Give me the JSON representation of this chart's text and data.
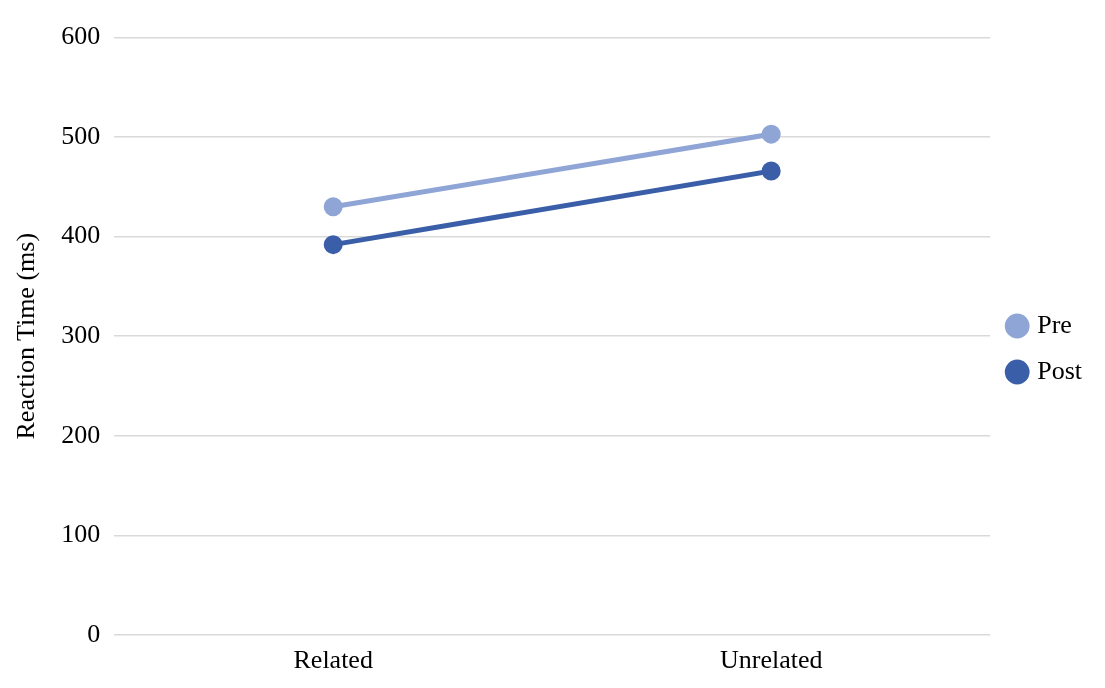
{
  "chart_data": {
    "type": "line",
    "ylabel": "Reaction Time (ms)",
    "categories": [
      "Related",
      "Unrelated"
    ],
    "series": [
      {
        "name": "Pre",
        "color": "#8fa5d6",
        "values": [
          430,
          503
        ]
      },
      {
        "name": "Post",
        "color": "#3a5fa8",
        "values": [
          392,
          466
        ]
      }
    ],
    "ylim": [
      0,
      600
    ],
    "yticks": [
      0,
      100,
      200,
      300,
      400,
      500,
      600
    ],
    "grid": "y",
    "legend": "right",
    "marker": "circle",
    "line_style": "solid"
  }
}
